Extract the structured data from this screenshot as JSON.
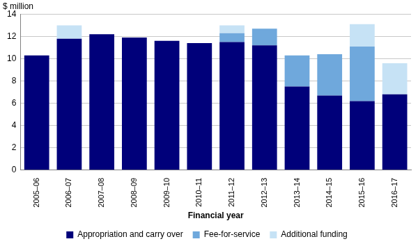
{
  "chart_data": {
    "type": "bar",
    "y_label": "$ million",
    "x_label": "Financial year",
    "categories": [
      "2005–06",
      "2006–07",
      "2007–08",
      "2008–09",
      "2009–10",
      "2010–11",
      "2011–12",
      "2012–13",
      "2013–14",
      "2014–15",
      "2015–16",
      "2016–17"
    ],
    "series": [
      {
        "name": "Appropriation and carry over",
        "color": "#00007a",
        "values": [
          10.3,
          11.8,
          12.2,
          11.9,
          11.6,
          11.4,
          11.5,
          11.2,
          7.5,
          6.7,
          6.2,
          6.8
        ]
      },
      {
        "name": "Fee-for-service",
        "color": "#6fa8dc",
        "values": [
          0,
          0,
          0,
          0,
          0,
          0,
          0.8,
          1.5,
          2.8,
          3.7,
          4.9,
          0
        ]
      },
      {
        "name": "Additional funding",
        "color": "#c6e2f5",
        "values": [
          0,
          1.2,
          0,
          0,
          0,
          0,
          0.7,
          0,
          0,
          0,
          2.0,
          2.8
        ]
      }
    ],
    "stacked": true,
    "ylim": [
      0,
      14
    ],
    "yticks": [
      0,
      2,
      4,
      6,
      8,
      10,
      12,
      14
    ],
    "grid": true,
    "legend": "bottom"
  }
}
